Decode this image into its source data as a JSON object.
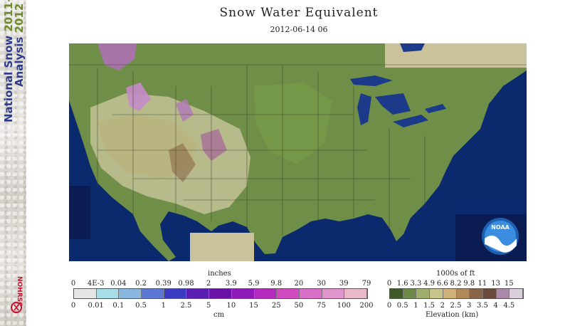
{
  "sidebar": {
    "line1": "National Snow ",
    "line1_year": "2011-",
    "line2": "Analysis ",
    "line2_year": "2012",
    "logo": "NOHRSC"
  },
  "header": {
    "title": "Snow Water Equivalent",
    "subtitle": "2012-06-14 06"
  },
  "map": {
    "logo": "NOAA"
  },
  "swe_legend": {
    "unit_top": "inches",
    "unit_bottom": "cm",
    "inches": [
      "0",
      "4E-3",
      "0.04",
      "0.2",
      "0.39",
      "0.98",
      "2",
      "3.9",
      "5.9",
      "9.8",
      "20",
      "30",
      "39",
      "79"
    ],
    "cm": [
      "0",
      "0.01",
      "0.1",
      "0.5",
      "1",
      "2.5",
      "5",
      "10",
      "15",
      "25",
      "50",
      "75",
      "100",
      "200"
    ],
    "colors": [
      "#e6e6e6",
      "#a6dde6",
      "#89b7de",
      "#5a78d4",
      "#3a3bc0",
      "#5a1fb0",
      "#6a12a8",
      "#8f1ab8",
      "#b32bbd",
      "#d04ac0",
      "#d96fc6",
      "#e095cd",
      "#e8b9c9"
    ]
  },
  "elev_legend": {
    "unit_top": "1000s of ft",
    "unit_bottom": "Elevation (km)",
    "feet": [
      "0",
      "1.6",
      "3.3",
      "4.9",
      "6.6",
      "8.2",
      "9.8",
      "11",
      "13",
      "15"
    ],
    "km": [
      "0",
      "0.5",
      "1",
      "1.5",
      "2",
      "2.5",
      "3",
      "3.5",
      "4",
      "4.5"
    ],
    "colors": [
      "#3f5a28",
      "#6e8a48",
      "#9fae6a",
      "#c9c48c",
      "#cdb07a",
      "#b08a5a",
      "#8a6446",
      "#6a4a3a",
      "#a98aa8",
      "#d9d0dc"
    ]
  }
}
